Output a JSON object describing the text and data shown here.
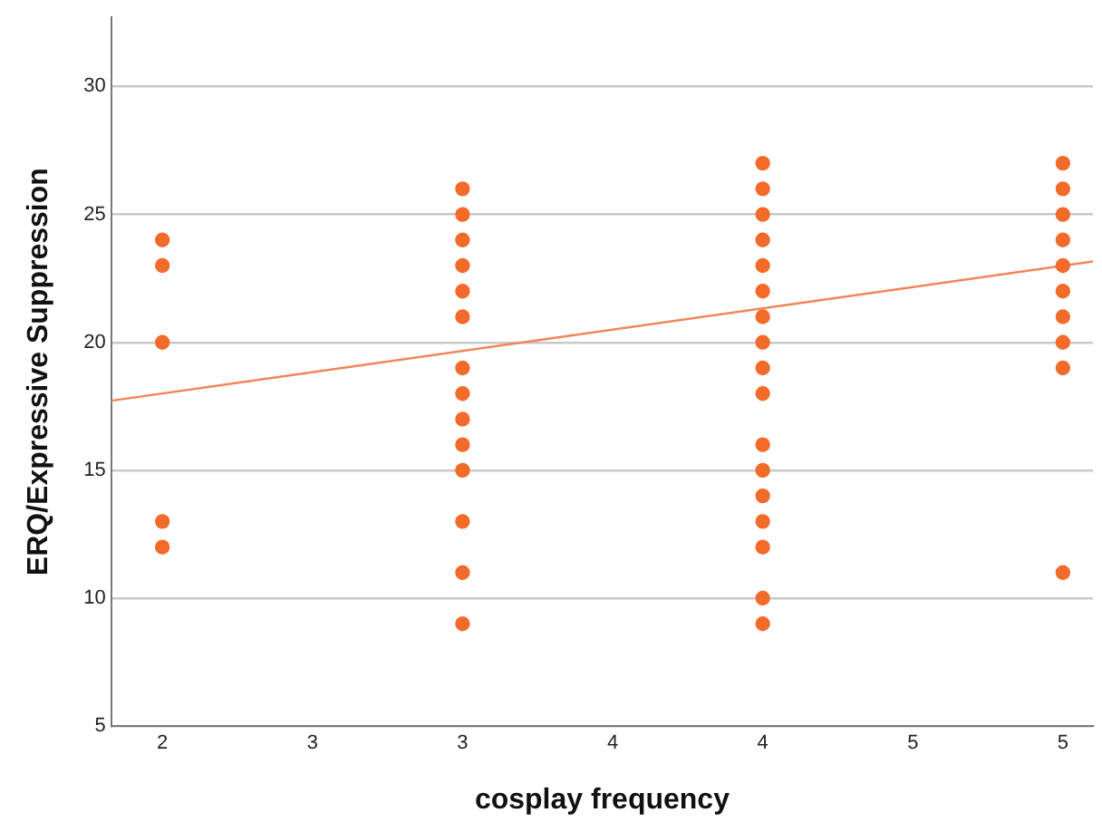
{
  "chart_data": {
    "type": "scatter",
    "xlabel": "cosplay frequency",
    "ylabel": "ERQ/Expressive Suppression",
    "xlim": [
      1.83,
      5.1
    ],
    "ylim": [
      5,
      32.7
    ],
    "xticks": [
      2,
      {
        "value": 2.5,
        "label": "3"
      },
      3,
      {
        "value": 3.5,
        "label": "4"
      },
      4,
      {
        "value": 4.5,
        "label": "5"
      },
      5
    ],
    "yticks": [
      5,
      10,
      15,
      20,
      25,
      30
    ],
    "grid": "y",
    "marker": "circle",
    "series": [
      {
        "type": "scatter",
        "color": "#f26b2a",
        "x": [
          2,
          2,
          2,
          2,
          2,
          3,
          3,
          3,
          3,
          3,
          3,
          3,
          3,
          3,
          3,
          3,
          3,
          3,
          3,
          4,
          4,
          4,
          4,
          4,
          4,
          4,
          4,
          4,
          4,
          4,
          4,
          4,
          4,
          4,
          4,
          4,
          5,
          5,
          5,
          5,
          5,
          5,
          5,
          5,
          5,
          5
        ],
        "values": [
          24,
          23,
          20,
          13,
          12,
          26,
          25,
          24,
          23,
          22,
          21,
          19,
          18,
          17,
          16,
          15,
          13,
          11,
          9,
          27,
          26,
          25,
          24,
          23,
          22,
          21,
          20,
          19,
          18,
          16,
          15,
          14,
          13,
          12,
          10,
          9,
          27,
          26,
          25,
          24,
          23,
          22,
          21,
          20,
          19,
          11
        ]
      },
      {
        "type": "line",
        "color": "#f4845a",
        "x": [
          1.83,
          5.1
        ],
        "values": [
          17.72,
          23.16
        ],
        "line_style": "solid",
        "marker": "none"
      }
    ]
  }
}
